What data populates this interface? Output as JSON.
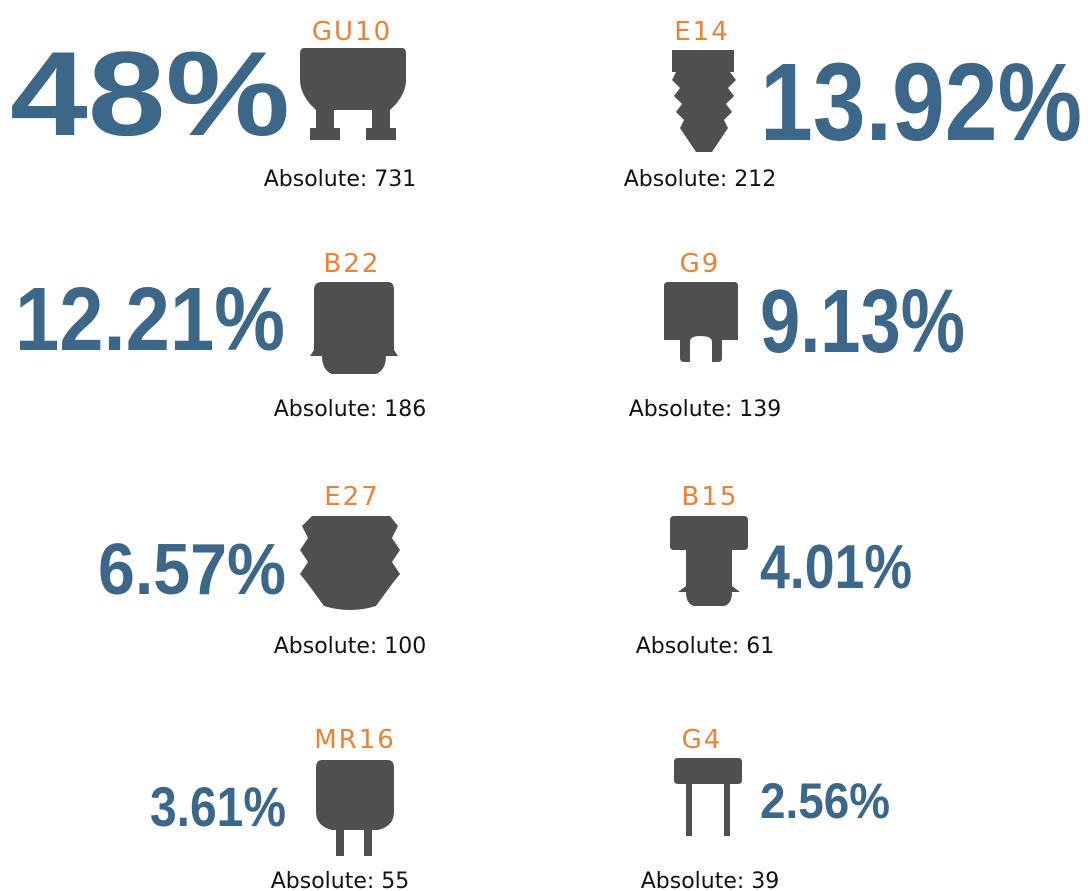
{
  "items": [
    {
      "label": "GU10",
      "percent": "48%",
      "absolute": "Absolute: 731"
    },
    {
      "label": "E14",
      "percent": "13.92%",
      "absolute": "Absolute: 212"
    },
    {
      "label": "B22",
      "percent": "12.21%",
      "absolute": "Absolute: 186"
    },
    {
      "label": "G9",
      "percent": "9.13%",
      "absolute": "Absolute: 139"
    },
    {
      "label": "E27",
      "percent": "6.57%",
      "absolute": "Absolute: 100"
    },
    {
      "label": "B15",
      "percent": "4.01%",
      "absolute": "Absolute: 61"
    },
    {
      "label": "MR16",
      "percent": "3.61%",
      "absolute": "Absolute: 55"
    },
    {
      "label": "G4",
      "percent": "2.56%",
      "absolute": "Absolute: 39"
    }
  ]
}
